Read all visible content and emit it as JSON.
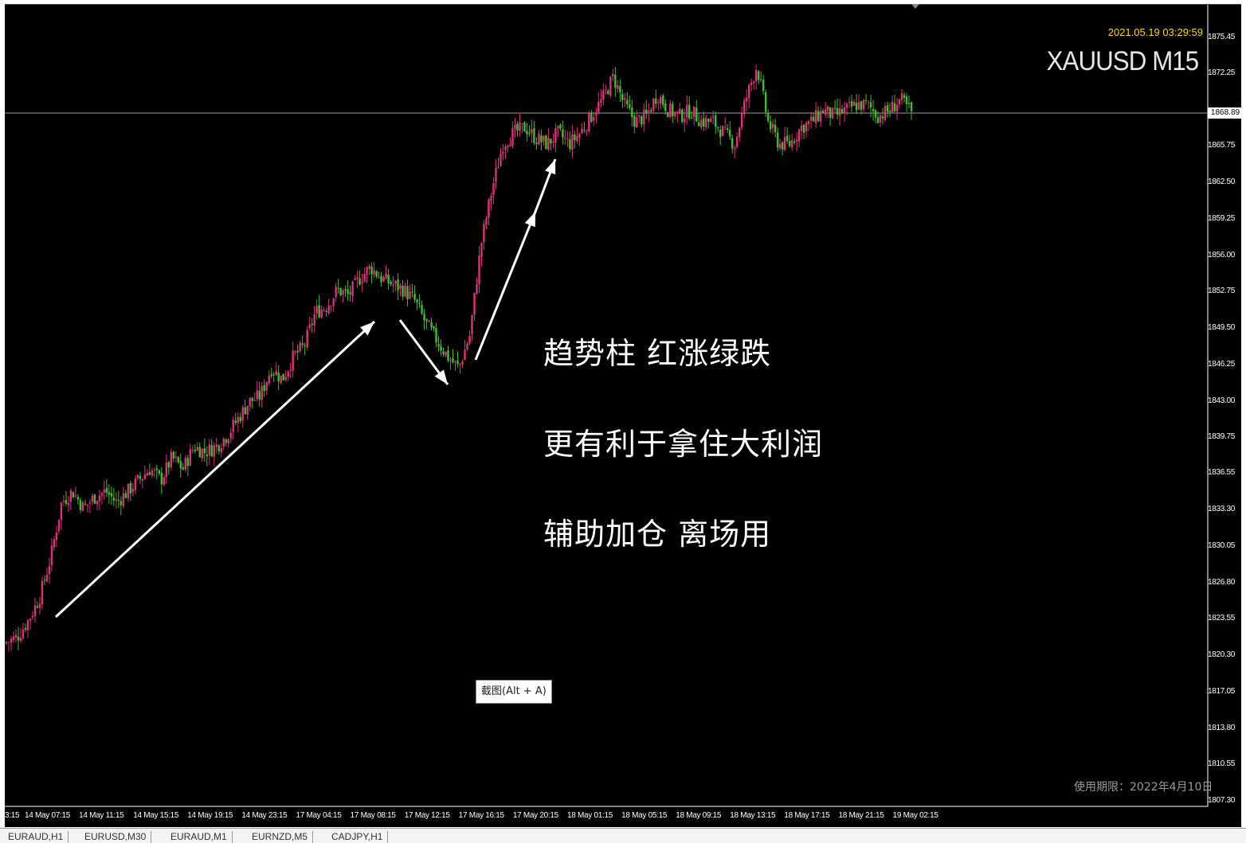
{
  "window": {
    "symbol_label": "XAUUSD M15",
    "timestamp": "2021.05.19 03:29:59",
    "license_text": "使用期限：2022年4月10日",
    "screenshot_hint": "截图(Alt + A)",
    "current_price": "1868.89"
  },
  "annotations": [
    "趋势柱  红涨绿跌",
    "更有利于拿住大利润",
    "辅助加仓 离场用"
  ],
  "tabs": [
    "EURAUD,H1",
    "EURUSD,M30",
    "EURAUD,M1",
    "EURNZD,M5",
    "CADJPY,H1"
  ],
  "colors": {
    "background": "#000000",
    "bull": "#e0307a",
    "bear": "#3fbf2a",
    "arrow": "#ffffff",
    "timestamp": "#ffd600"
  },
  "chart_data": {
    "type": "candlestick",
    "title": "XAUUSD M15",
    "ylim": [
      1807.3,
      1876.5
    ],
    "y_ticks": [
      "1875.45",
      "1872.25",
      "1868.89",
      "1865.75",
      "1862.50",
      "1859.25",
      "1856.00",
      "1852.75",
      "1849.50",
      "1846.25",
      "1843.00",
      "1839.75",
      "1836.55",
      "1833.30",
      "1830.05",
      "1826.80",
      "1823.55",
      "1820.30",
      "1817.05",
      "1813.80",
      "1810.55",
      "1807.30"
    ],
    "x_ticks": [
      "3:15",
      "14 May 07:15",
      "14 May 11:15",
      "14 May 15:15",
      "14 May 19:15",
      "14 May 23:15",
      "17 May 04:15",
      "17 May 08:15",
      "17 May 12:15",
      "17 May 16:15",
      "17 May 20:15",
      "18 May 01:15",
      "18 May 05:15",
      "18 May 09:15",
      "18 May 13:15",
      "18 May 17:15",
      "18 May 21:15",
      "19 May 02:15"
    ],
    "close_path": [
      1821.5,
      1822.0,
      1823.5,
      1825.5,
      1829,
      1834,
      1835,
      1833.5,
      1834.5,
      1835,
      1834,
      1835,
      1836,
      1837,
      1836,
      1838,
      1837,
      1839,
      1838.5,
      1839,
      1840,
      1841.5,
      1843,
      1843.5,
      1846,
      1845,
      1847,
      1848,
      1851,
      1851.5,
      1853,
      1852.5,
      1854,
      1855,
      1854,
      1853.5,
      1853,
      1852,
      1850,
      1848.5,
      1847,
      1846,
      1849,
      1857,
      1862,
      1866,
      1867,
      1867.5,
      1866.5,
      1866,
      1867,
      1866,
      1867,
      1868.5,
      1870,
      1872,
      1869.5,
      1868,
      1868.5,
      1870.5,
      1869,
      1868.5,
      1869,
      1868,
      1868,
      1867,
      1866,
      1870,
      1873,
      1868,
      1866,
      1866,
      1867.5,
      1868,
      1869,
      1868.5,
      1869,
      1869.5,
      1869.5,
      1868.5,
      1869,
      1870,
      1868.8
    ],
    "series": [
      {
        "name": "XAUUSD M15"
      }
    ],
    "current_price": 1868.89,
    "grid": false,
    "annotation_arrows": [
      {
        "from": "14 May 07:15",
        "to": "17 May 08:15"
      },
      {
        "from": "17 May 08:15",
        "to": "17 May 12:15"
      },
      {
        "from": "17 May 12:15",
        "to": "17 May 16:15"
      },
      {
        "from": "17 May 16:15",
        "to": "17 May 20:15"
      }
    ]
  }
}
